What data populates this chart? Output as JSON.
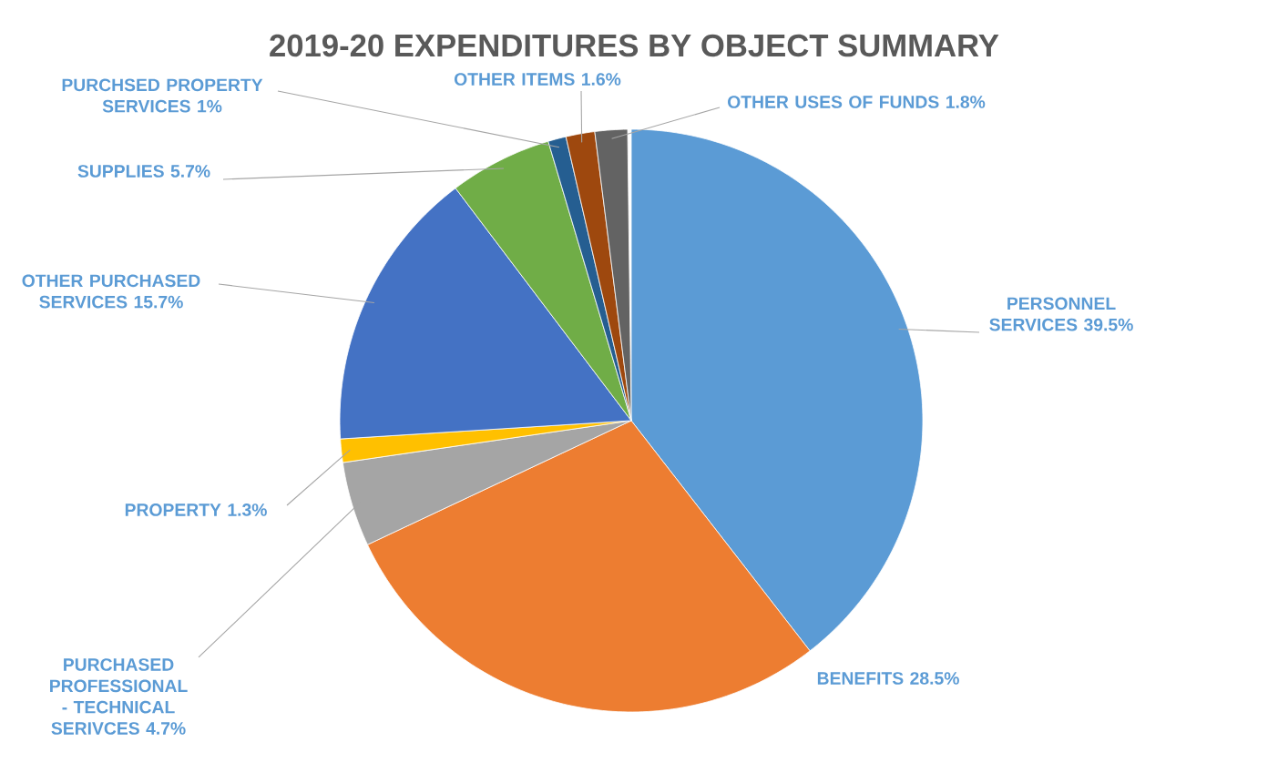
{
  "chart_data": {
    "type": "pie",
    "title": "2019-20 EXPENDITURES BY OBJECT SUMMARY",
    "categories": [
      "PERSONNEL SERVICES",
      "BENEFITS",
      "PURCHASED PROFESSIONAL - TECHNICAL SERIVCES",
      "PROPERTY",
      "OTHER PURCHASED SERVICES",
      "SUPPLIES",
      "PURCHSED PROPERTY SERVICES",
      "OTHER ITEMS",
      "OTHER USES OF FUNDS"
    ],
    "values": [
      39.5,
      28.5,
      4.7,
      1.3,
      15.7,
      5.7,
      1,
      1.6,
      1.8
    ],
    "value_labels": [
      "39.5%",
      "28.5%",
      "4.7%",
      "1.3%",
      "15.7%",
      "5.7%",
      "1%",
      "1.6%",
      "1.8%"
    ],
    "colors": [
      "#5b9bd5",
      "#ed7d31",
      "#a5a5a5",
      "#ffc000",
      "#4472c4",
      "#70ad47",
      "#255e91",
      "#9e480e",
      "#636363"
    ]
  }
}
